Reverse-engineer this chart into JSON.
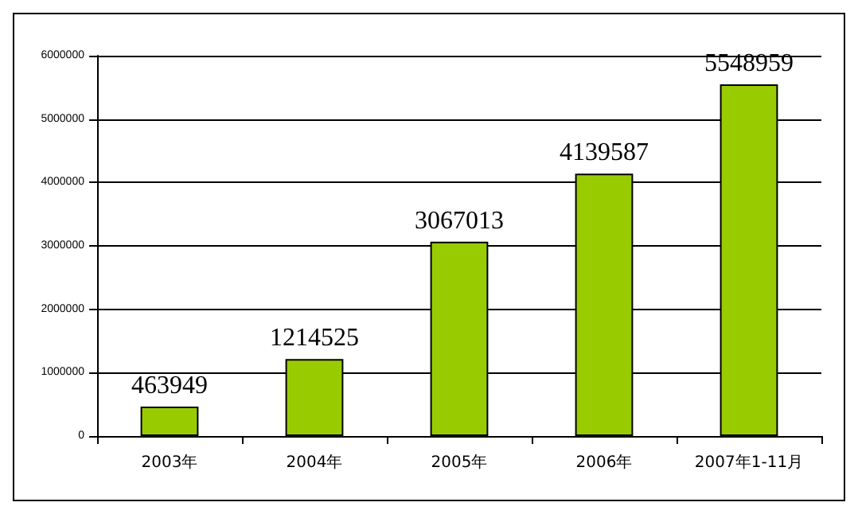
{
  "chart_data": {
    "type": "bar",
    "categories": [
      "2003年",
      "2004年",
      "2005年",
      "2006年",
      "2007年1-11月"
    ],
    "values": [
      463949,
      1214525,
      3067013,
      4139587,
      5548959
    ],
    "color": "#99cc00",
    "ylim": [
      0,
      6000000
    ],
    "yticks": [
      0,
      1000000,
      2000000,
      3000000,
      4000000,
      5000000,
      6000000
    ],
    "grid": "y",
    "data_labels": true
  }
}
